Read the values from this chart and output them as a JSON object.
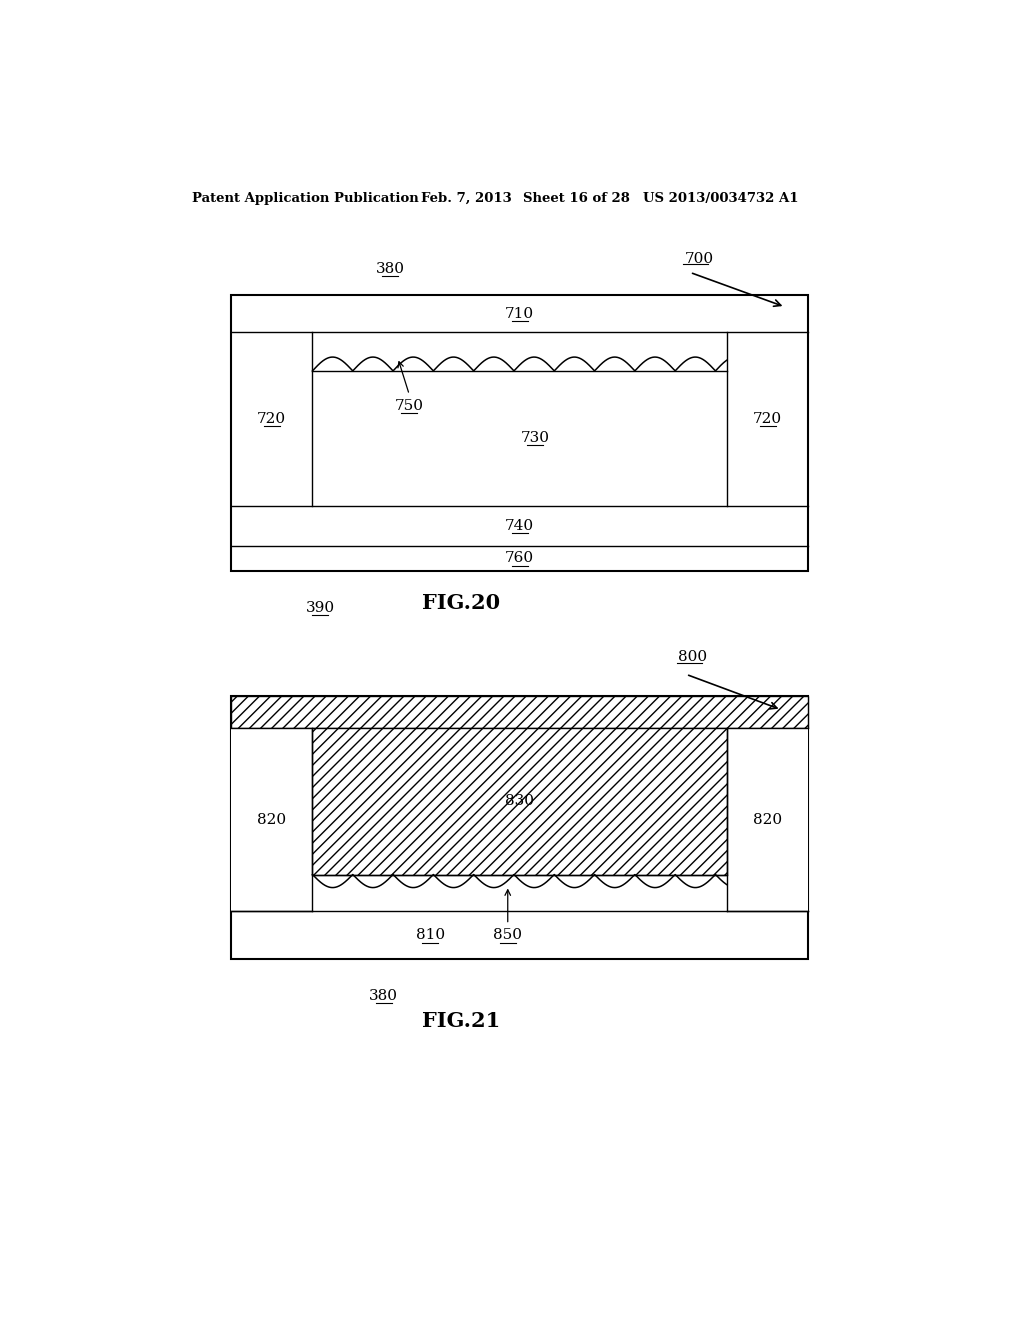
{
  "bg_color": "#ffffff",
  "header_text": "Patent Application Publication",
  "header_date": "Feb. 7, 2013",
  "header_sheet": "Sheet 16 of 28",
  "header_patent": "US 2013/0034732 A1",
  "fig20_label": "FIG.20",
  "fig21_label": "FIG.21",
  "label_390": "390",
  "label_380_top": "380",
  "label_380_bottom": "380",
  "label_700": "700",
  "label_800": "800",
  "label_710": "710",
  "label_720L": "720",
  "label_720R": "720",
  "label_730": "730",
  "label_740": "740",
  "label_750": "750",
  "label_760": "760",
  "label_810": "810",
  "label_820L": "820",
  "label_820R": "820",
  "label_830": "830",
  "label_850": "850"
}
